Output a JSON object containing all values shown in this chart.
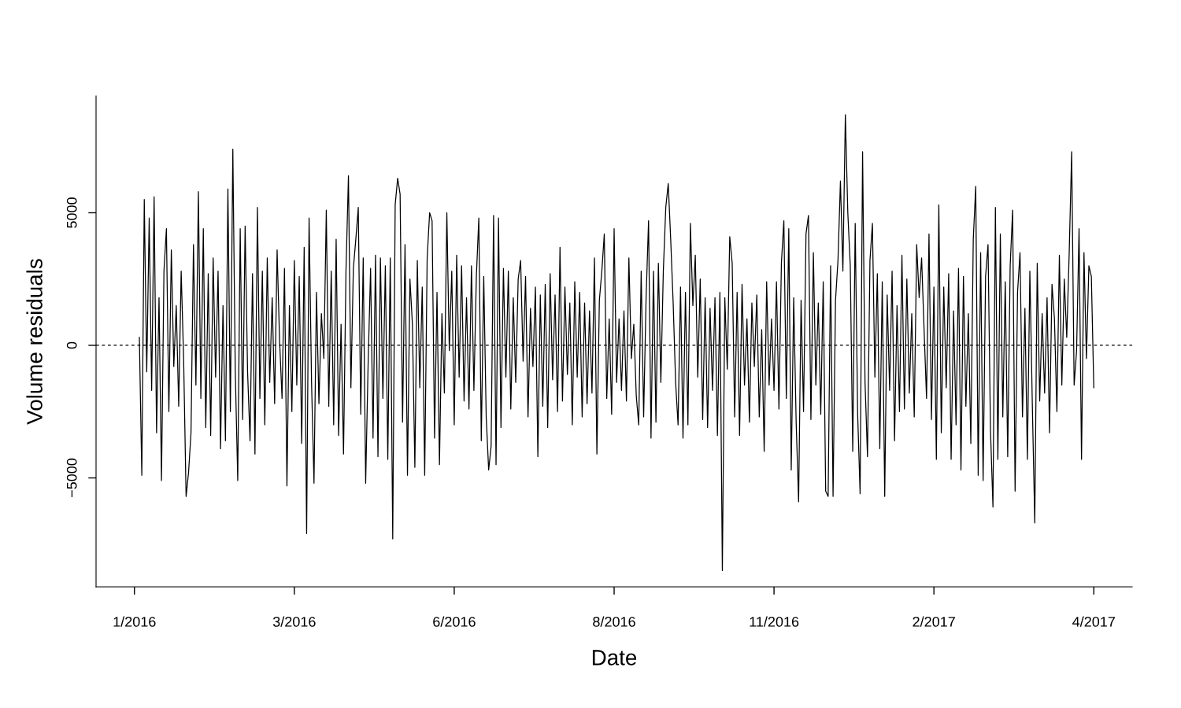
{
  "chart_data": {
    "type": "line",
    "xlabel": "Date",
    "ylabel": "Volume residuals",
    "ylim": [
      -9109,
      9405
    ],
    "categories": [
      "1/2016",
      null,
      null,
      null,
      null,
      null,
      null,
      null,
      null,
      null,
      null,
      null,
      null,
      null,
      null,
      null,
      null,
      null,
      null,
      null,
      null,
      null,
      null,
      null,
      null,
      null,
      null,
      null,
      null,
      null,
      null,
      null,
      null,
      null,
      null,
      null,
      null,
      null,
      null,
      null,
      null,
      null,
      null,
      null,
      null,
      null,
      null,
      null,
      null,
      null,
      null,
      null,
      null,
      null,
      null,
      null,
      null,
      null,
      null,
      null,
      null,
      null,
      null,
      null,
      null,
      "3/2016",
      null,
      null,
      null,
      null,
      null,
      null,
      null,
      null,
      null,
      null,
      null,
      null,
      null,
      null,
      null,
      null,
      null,
      null,
      null,
      null,
      null,
      null,
      null,
      null,
      null,
      null,
      null,
      null,
      null,
      null,
      null,
      null,
      null,
      null,
      null,
      null,
      null,
      null,
      null,
      null,
      null,
      null,
      null,
      null,
      null,
      null,
      null,
      null,
      null,
      null,
      null,
      null,
      null,
      null,
      null,
      null,
      null,
      null,
      null,
      null,
      null,
      null,
      null,
      null,
      "6/2016",
      null,
      null,
      null,
      null,
      null,
      null,
      null,
      null,
      null,
      null,
      null,
      null,
      null,
      null,
      null,
      null,
      null,
      null,
      null,
      null,
      null,
      null,
      null,
      null,
      null,
      null,
      null,
      null,
      null,
      null,
      null,
      null,
      null,
      null,
      null,
      null,
      null,
      null,
      null,
      null,
      null,
      null,
      null,
      null,
      null,
      null,
      null,
      null,
      null,
      null,
      null,
      null,
      null,
      null,
      null,
      null,
      null,
      null,
      null,
      null,
      null,
      null,
      null,
      null,
      "8/2016",
      null,
      null,
      null,
      null,
      null,
      null,
      null,
      null,
      null,
      null,
      null,
      null,
      null,
      null,
      null,
      null,
      null,
      null,
      null,
      null,
      null,
      null,
      null,
      null,
      null,
      null,
      null,
      null,
      null,
      null,
      null,
      null,
      null,
      null,
      null,
      null,
      null,
      null,
      null,
      null,
      null,
      null,
      null,
      null,
      null,
      null,
      null,
      null,
      null,
      null,
      null,
      null,
      null,
      null,
      null,
      null,
      null,
      null,
      null,
      null,
      null,
      null,
      null,
      null,
      "11/2016",
      null,
      null,
      null,
      null,
      null,
      null,
      null,
      null,
      null,
      null,
      null,
      null,
      null,
      null,
      null,
      null,
      null,
      null,
      null,
      null,
      null,
      null,
      null,
      null,
      null,
      null,
      null,
      null,
      null,
      null,
      null,
      null,
      null,
      null,
      null,
      null,
      null,
      null,
      null,
      null,
      null,
      null,
      null,
      null,
      null,
      null,
      null,
      null,
      null,
      null,
      null,
      null,
      null,
      null,
      null,
      null,
      null,
      null,
      null,
      null,
      null,
      null,
      null,
      null,
      "2/2017",
      null,
      null,
      null,
      null,
      null,
      null,
      null,
      null,
      null,
      null,
      null,
      null,
      null,
      null,
      null,
      null,
      null,
      null,
      null,
      null,
      null,
      null,
      null,
      null,
      null,
      null,
      null,
      null,
      null,
      null,
      null,
      null,
      null,
      null,
      null,
      null,
      null,
      null,
      null,
      null,
      null,
      null,
      null,
      null,
      null,
      null,
      null,
      null,
      null,
      null,
      null,
      null,
      null,
      null,
      null,
      null,
      null,
      null,
      null,
      null,
      null,
      null,
      null,
      null,
      "4/2017"
    ],
    "yticks": [
      {
        "value": -5000,
        "label": "−5000"
      },
      0,
      5000
    ],
    "ref_lines": [
      {
        "axis": "y",
        "value": 0,
        "color": "#000000",
        "line_style": "dashed"
      }
    ],
    "series": [
      {
        "color": "#000000",
        "values": [
          null,
          null,
          300,
          -4900,
          5500,
          -1000,
          4800,
          -1700,
          5600,
          -3300,
          1800,
          -5100,
          2800,
          4400,
          -2500,
          3600,
          -800,
          1500,
          -2300,
          2800,
          -500,
          -5700,
          -4800,
          -3300,
          3800,
          -1500,
          5800,
          -2000,
          4400,
          -3100,
          2700,
          -3400,
          3300,
          -1200,
          2800,
          -3900,
          1500,
          -3600,
          5900,
          -2500,
          7400,
          -1000,
          -5100,
          4400,
          -2800,
          4500,
          -1000,
          -3600,
          2700,
          -4100,
          5200,
          -2000,
          2800,
          -3000,
          3300,
          -1400,
          1800,
          -2200,
          3600,
          200,
          -2000,
          2900,
          -5300,
          1500,
          -2500,
          3200,
          -1500,
          2600,
          -3700,
          3700,
          -7100,
          4800,
          -1400,
          -5200,
          2000,
          -2200,
          1200,
          -500,
          5100,
          -2300,
          2800,
          -3000,
          4000,
          -3400,
          800,
          -4100,
          2800,
          6400,
          -1600,
          2900,
          4000,
          5200,
          -2600,
          3300,
          -5200,
          -700,
          2900,
          -3500,
          3400,
          -4200,
          3300,
          -2000,
          3000,
          -4300,
          3300,
          -7300,
          5300,
          6300,
          5700,
          -2900,
          3800,
          -4900,
          2500,
          800,
          -4600,
          3200,
          -1600,
          2200,
          -4900,
          3300,
          5000,
          4700,
          -3500,
          2000,
          -4500,
          1200,
          -1800,
          5000,
          -200,
          2800,
          -3000,
          3400,
          -1200,
          3000,
          -2100,
          1800,
          -2400,
          3000,
          -1700,
          2600,
          4800,
          -3600,
          2600,
          -2700,
          -4700,
          -3800,
          4900,
          -4500,
          4800,
          -3100,
          2900,
          -1200,
          2800,
          -2400,
          1800,
          -1400,
          2500,
          3200,
          -600,
          2600,
          -2700,
          1400,
          -800,
          2200,
          -4200,
          1900,
          -2300,
          2300,
          -3100,
          2700,
          -1300,
          1900,
          -2500,
          3700,
          -2100,
          2200,
          -1100,
          1600,
          -3000,
          2400,
          -1200,
          2000,
          -2700,
          1600,
          -2200,
          1300,
          -1800,
          3300,
          -4100,
          1700,
          2800,
          4200,
          -2000,
          1000,
          -2600,
          4400,
          -1400,
          1000,
          -1700,
          1300,
          -2100,
          3300,
          -500,
          800,
          -1900,
          -3000,
          2800,
          -2700,
          1800,
          4700,
          -3500,
          2800,
          -2900,
          3100,
          -1400,
          2800,
          5200,
          6100,
          4000,
          1600,
          -1400,
          -3000,
          2200,
          -3500,
          2000,
          -3000,
          4600,
          1500,
          3400,
          -1200,
          2500,
          -2800,
          1800,
          -3100,
          1400,
          -1700,
          1800,
          -3400,
          2000,
          -8500,
          1800,
          -900,
          4100,
          3100,
          -2700,
          2000,
          -3400,
          2300,
          -1500,
          1000,
          -2900,
          1600,
          -800,
          1900,
          -2700,
          600,
          -4000,
          2400,
          -1500,
          1000,
          -1700,
          2400,
          -2400,
          3100,
          4700,
          -2000,
          4400,
          -4700,
          1800,
          -2900,
          -5900,
          1700,
          -2500,
          4200,
          4900,
          -2800,
          3500,
          -1500,
          1600,
          -2600,
          2400,
          -5500,
          -5700,
          3000,
          -5700,
          1700,
          3200,
          6200,
          2800,
          8700,
          5000,
          3000,
          -4000,
          4600,
          -2600,
          -5600,
          7300,
          -1400,
          -4200,
          3200,
          4600,
          -1200,
          2700,
          -3900,
          2400,
          -5700,
          1900,
          -1700,
          2800,
          -3600,
          1500,
          -2500,
          3400,
          -2400,
          2500,
          -1800,
          1200,
          -2700,
          3800,
          1800,
          3300,
          600,
          -2000,
          4200,
          -2800,
          2200,
          -4300,
          5300,
          -3300,
          2200,
          -1600,
          2700,
          -4300,
          1300,
          -3000,
          2900,
          -4700,
          2600,
          -2300,
          1200,
          -3700,
          4000,
          6000,
          -4900,
          3500,
          -5100,
          2600,
          3800,
          -3200,
          -6100,
          5200,
          -4300,
          4200,
          -2700,
          2400,
          -4200,
          3000,
          5100,
          -5500,
          2000,
          3500,
          -2700,
          1400,
          -4300,
          2800,
          -2200,
          -6700,
          3100,
          -2100,
          1200,
          -1800,
          1800,
          -3300,
          2300,
          1000,
          -2500,
          3400,
          -1500,
          2500,
          300,
          3500,
          7300,
          -1500,
          -200,
          4400,
          -4300,
          3500,
          -500,
          3000,
          2600,
          -1600
        ]
      }
    ]
  }
}
